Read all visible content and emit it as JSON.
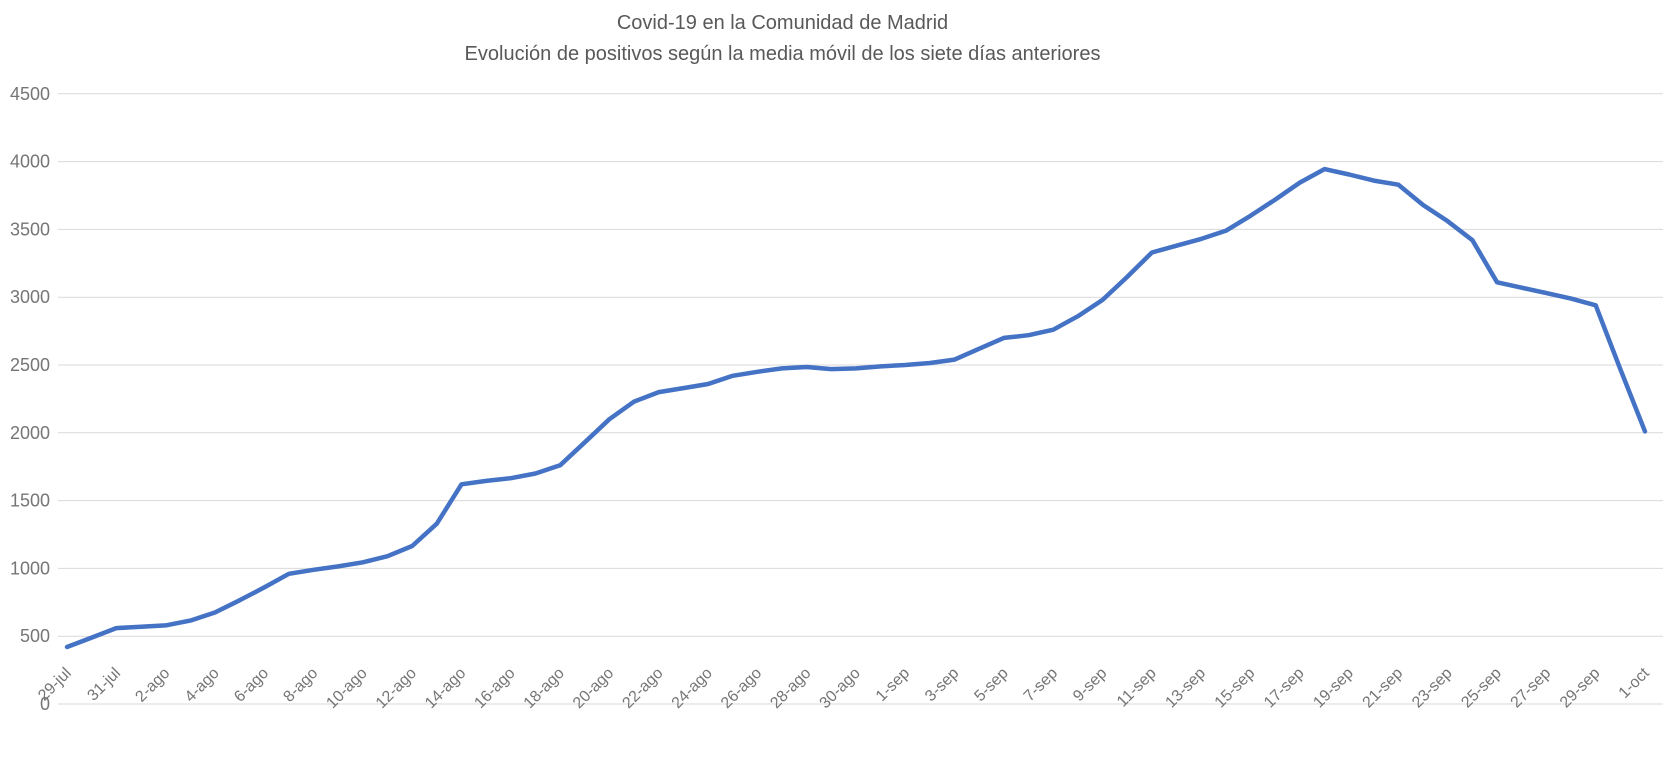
{
  "chart_data": {
    "type": "line",
    "title": "Covid-19 en la Comunidad de Madrid",
    "subtitle": "Evolución de positivos según la media móvil de los siete días anteriores",
    "x": [
      "29-jul",
      "30-jul",
      "31-jul",
      "1-ago",
      "2-ago",
      "3-ago",
      "4-ago",
      "5-ago",
      "6-ago",
      "7-ago",
      "8-ago",
      "9-ago",
      "10-ago",
      "11-ago",
      "12-ago",
      "13-ago",
      "14-ago",
      "15-ago",
      "16-ago",
      "17-ago",
      "18-ago",
      "19-ago",
      "20-ago",
      "21-ago",
      "22-ago",
      "23-ago",
      "24-ago",
      "25-ago",
      "26-ago",
      "27-ago",
      "28-ago",
      "29-ago",
      "30-ago",
      "31-ago",
      "1-sep",
      "2-sep",
      "3-sep",
      "4-sep",
      "5-sep",
      "6-sep",
      "7-sep",
      "8-sep",
      "9-sep",
      "10-sep",
      "11-sep",
      "12-sep",
      "13-sep",
      "14-sep",
      "15-sep",
      "16-sep",
      "17-sep",
      "18-sep",
      "19-sep",
      "20-sep",
      "21-sep",
      "22-sep",
      "23-sep",
      "24-sep",
      "25-sep",
      "26-sep",
      "27-sep",
      "28-sep",
      "29-sep",
      "30-sep",
      "1-oct"
    ],
    "values": [
      420,
      490,
      560,
      570,
      580,
      615,
      675,
      765,
      860,
      960,
      990,
      1015,
      1045,
      1090,
      1165,
      1330,
      1620,
      1645,
      1665,
      1700,
      1760,
      1930,
      2100,
      2230,
      2300,
      2330,
      2360,
      2420,
      2450,
      2475,
      2485,
      2470,
      2475,
      2490,
      2500,
      2515,
      2540,
      2620,
      2700,
      2720,
      2760,
      2860,
      2980,
      3150,
      3330,
      3380,
      3430,
      3490,
      3600,
      3720,
      3845,
      3945,
      3905,
      3860,
      3830,
      3680,
      3560,
      3420,
      3110,
      3070,
      3030,
      2990,
      2940,
      2470,
      2010
    ],
    "x_tick_labels": [
      "29-jul",
      "31-jul",
      "2-ago",
      "4-ago",
      "6-ago",
      "8-ago",
      "10-ago",
      "12-ago",
      "14-ago",
      "16-ago",
      "18-ago",
      "20-ago",
      "22-ago",
      "24-ago",
      "26-ago",
      "28-ago",
      "30-ago",
      "1-sep",
      "3-sep",
      "5-sep",
      "7-sep",
      "9-sep",
      "11-sep",
      "13-sep",
      "15-sep",
      "17-sep",
      "19-sep",
      "21-sep",
      "23-sep",
      "25-sep",
      "27-sep",
      "29-sep",
      "1-oct"
    ],
    "x_tick_step": 2,
    "y_ticks": [
      0,
      500,
      1000,
      1500,
      2000,
      2500,
      3000,
      3500,
      4000,
      4500
    ],
    "ylim": [
      0,
      4500
    ],
    "grid": true,
    "legend": false,
    "peak_value": 3945,
    "peak_date": "18-sep",
    "colors": {
      "line": "#4472C4",
      "grid": "#D9D9D9",
      "axis_label": "#757575",
      "title": "#595959",
      "background": "#FFFFFF"
    }
  }
}
